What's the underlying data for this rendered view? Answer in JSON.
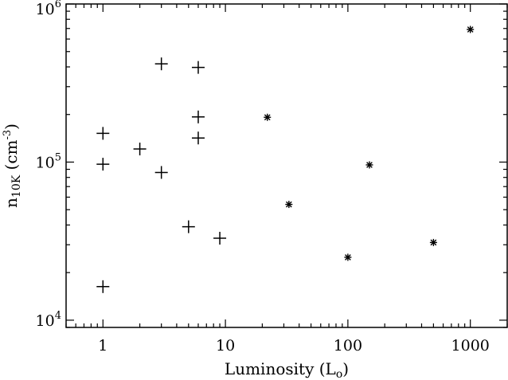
{
  "chart_data": {
    "type": "scatter",
    "title": "",
    "xlabel": {
      "main": "Luminosity (L",
      "sub": "o",
      "close": ")"
    },
    "ylabel": {
      "main": "n",
      "sub": "10K",
      "unit": " (cm",
      "sup": "-3",
      "close": ")"
    },
    "x_scale": "log",
    "y_scale": "log",
    "xlim": [
      0.5,
      2000
    ],
    "ylim": [
      9000,
      1000000
    ],
    "grid": false,
    "legend": "none",
    "x_tick_labels": [
      {
        "value": 1,
        "label": "1"
      },
      {
        "value": 10,
        "label": "10"
      },
      {
        "value": 100,
        "label": "100"
      },
      {
        "value": 1000,
        "label": "1000"
      }
    ],
    "y_tick_labels": [
      {
        "value": 10000,
        "base": "10",
        "exp": "4"
      },
      {
        "value": 100000,
        "base": "10",
        "exp": "5"
      },
      {
        "value": 1000000,
        "base": "10",
        "exp": "6"
      }
    ],
    "series": [
      {
        "marker": "plus",
        "points": [
          {
            "x": 1,
            "y": 152000
          },
          {
            "x": 1,
            "y": 97000
          },
          {
            "x": 1,
            "y": 16300
          },
          {
            "x": 2,
            "y": 121000
          },
          {
            "x": 3,
            "y": 418000
          },
          {
            "x": 3,
            "y": 86000
          },
          {
            "x": 5,
            "y": 39000
          },
          {
            "x": 6,
            "y": 397000
          },
          {
            "x": 6,
            "y": 193000
          },
          {
            "x": 6,
            "y": 142000
          },
          {
            "x": 9,
            "y": 33000
          }
        ]
      },
      {
        "marker": "asterisk",
        "points": [
          {
            "x": 22,
            "y": 192000
          },
          {
            "x": 33,
            "y": 54000
          },
          {
            "x": 100,
            "y": 25000
          },
          {
            "x": 150,
            "y": 96000
          },
          {
            "x": 500,
            "y": 31000
          },
          {
            "x": 1000,
            "y": 690000
          }
        ]
      }
    ],
    "colors": {
      "foreground": "#000000",
      "background": "#ffffff"
    }
  }
}
